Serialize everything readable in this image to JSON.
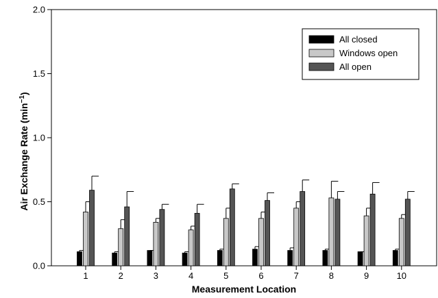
{
  "chart_data": {
    "type": "bar",
    "title": "",
    "xlabel": "Measurement Location",
    "ylabel": "Air Exchange Rate (min",
    "ylabel_sup": "−1",
    "ylabel_tail": ")",
    "categories": [
      "1",
      "2",
      "3",
      "4",
      "5",
      "6",
      "7",
      "8",
      "9",
      "10"
    ],
    "ylim": [
      0,
      2.0
    ],
    "yticks": [
      0.0,
      0.5,
      1.0,
      1.5,
      2.0
    ],
    "ytick_labels": [
      "0.0",
      "0.5",
      "1.0",
      "1.5",
      "2.0"
    ],
    "grid": false,
    "legend_position": "top-right",
    "error_bars": "upper caps",
    "series": [
      {
        "name": "All closed",
        "color": "#000000",
        "values": [
          0.11,
          0.1,
          0.12,
          0.1,
          0.12,
          0.13,
          0.12,
          0.12,
          0.11,
          0.12
        ],
        "errors": [
          0.01,
          0.01,
          0.0,
          0.01,
          0.01,
          0.02,
          0.02,
          0.01,
          0.0,
          0.01
        ]
      },
      {
        "name": "Windows open",
        "color": "#c8c8c8",
        "values": [
          0.42,
          0.29,
          0.34,
          0.28,
          0.37,
          0.37,
          0.45,
          0.53,
          0.39,
          0.37
        ],
        "errors": [
          0.08,
          0.07,
          0.03,
          0.03,
          0.08,
          0.05,
          0.05,
          0.13,
          0.06,
          0.03
        ]
      },
      {
        "name": "All open",
        "color": "#555555",
        "values": [
          0.59,
          0.46,
          0.44,
          0.41,
          0.6,
          0.51,
          0.58,
          0.52,
          0.56,
          0.52
        ],
        "errors": [
          0.11,
          0.12,
          0.04,
          0.07,
          0.04,
          0.06,
          0.09,
          0.06,
          0.09,
          0.06
        ]
      }
    ]
  }
}
